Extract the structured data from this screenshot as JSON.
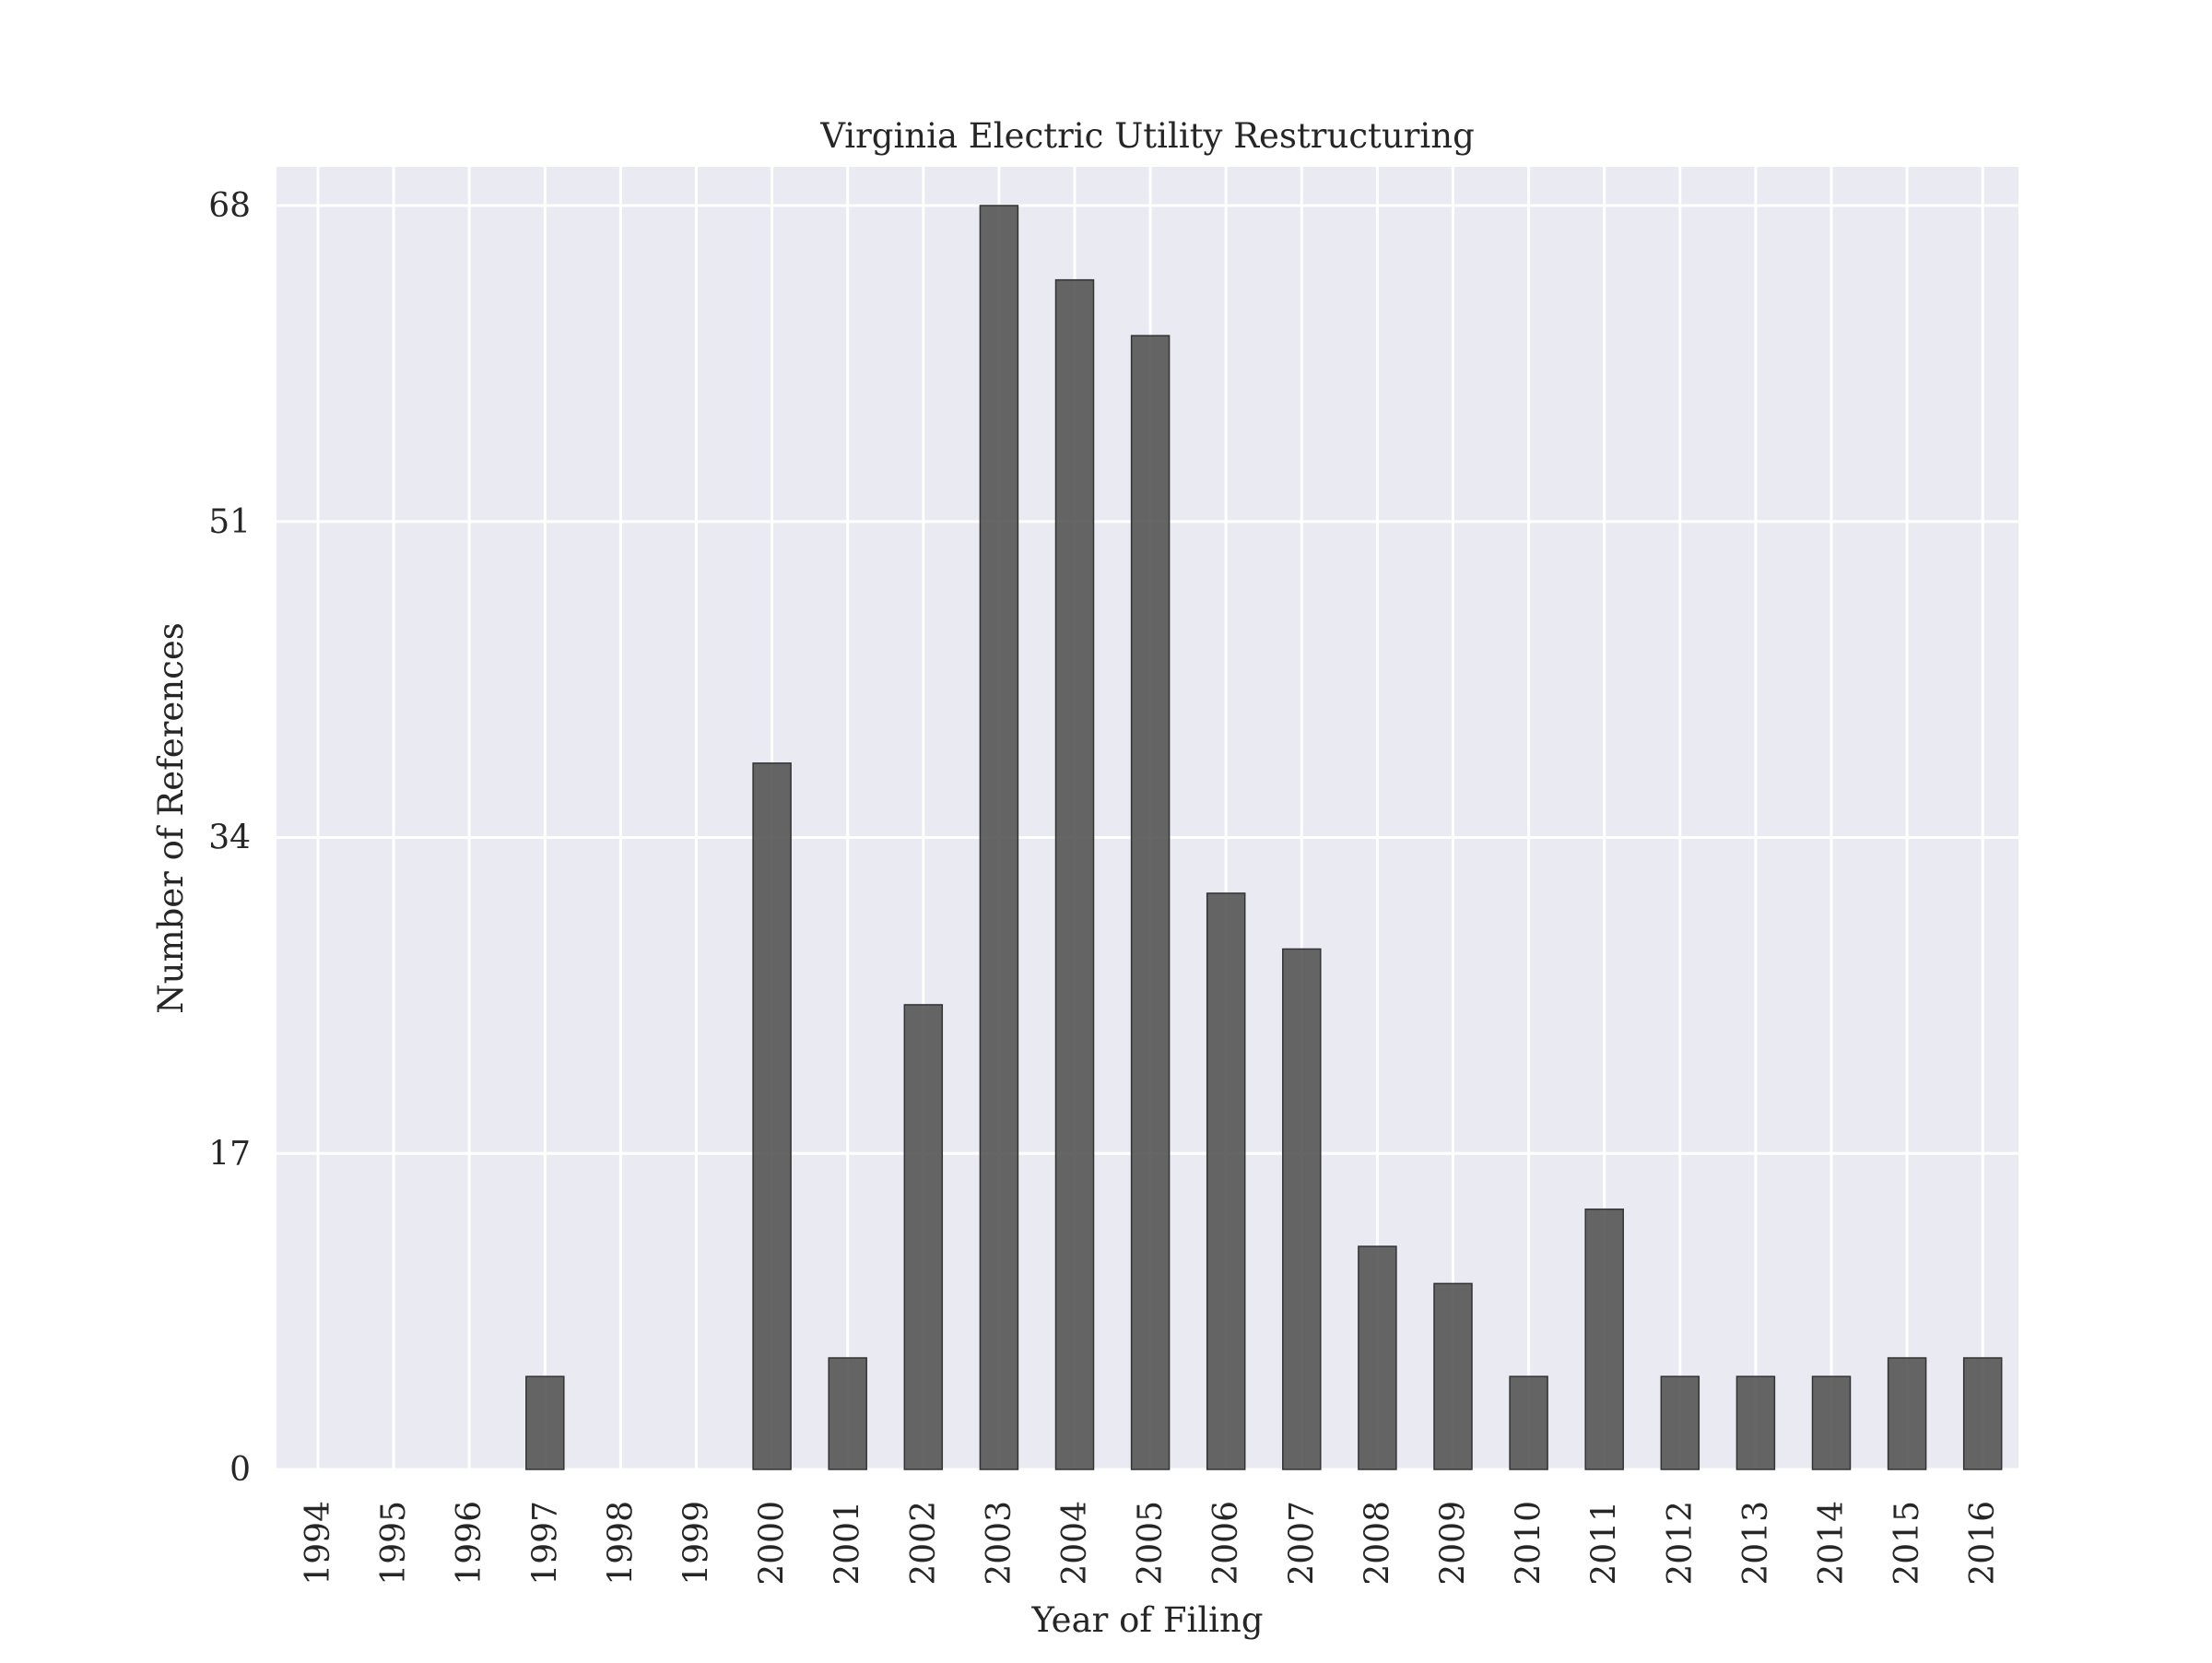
{
  "chart_data": {
    "type": "bar",
    "title": "Virginia Electric Utility Restructuring",
    "xlabel": "Year of Filing",
    "ylabel": "Number of References",
    "categories": [
      "1994",
      "1995",
      "1996",
      "1997",
      "1998",
      "1999",
      "2000",
      "2001",
      "2002",
      "2003",
      "2004",
      "2005",
      "2006",
      "2007",
      "2008",
      "2009",
      "2010",
      "2011",
      "2012",
      "2013",
      "2014",
      "2015",
      "2016"
    ],
    "values": [
      0,
      0,
      0,
      5,
      0,
      0,
      38,
      6,
      25,
      68,
      64,
      61,
      31,
      28,
      12,
      10,
      5,
      14,
      5,
      5,
      5,
      6,
      6
    ],
    "ylim": [
      0,
      68
    ],
    "yticks": [
      0,
      17,
      34,
      51,
      68
    ],
    "grid": true,
    "colors": {
      "plot_background": "#eaeaf2",
      "grid": "#ffffff",
      "bar_fill": "#555555",
      "bar_edge": "#333333",
      "text": "#262626"
    }
  }
}
